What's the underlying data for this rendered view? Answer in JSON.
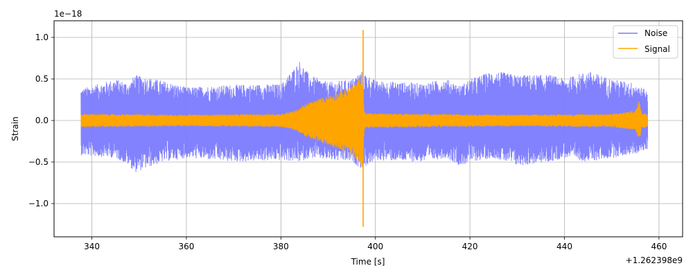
{
  "chart_data": {
    "type": "line",
    "xlabel": "Time [s]",
    "ylabel": "Strain",
    "x_offset_label": "+1.262398e9",
    "y_scale_label": "1e−18",
    "xlim": [
      332,
      465
    ],
    "ylim": [
      -1.4,
      1.2
    ],
    "grid": true,
    "legend_position": "top-right",
    "x_ticks": [
      340,
      360,
      380,
      400,
      420,
      440,
      460
    ],
    "x_tick_labels": [
      "340",
      "360",
      "380",
      "400",
      "420",
      "440",
      "460"
    ],
    "y_ticks": [
      1.0,
      0.5,
      0.0,
      -0.5,
      -1.0
    ],
    "y_tick_labels": [
      "1.0",
      "0.5",
      "0.0",
      "−0.5",
      "−1.0"
    ],
    "series": [
      {
        "name": "Noise",
        "color": "#7b7bff",
        "x_range": [
          337.7,
          457.6
        ],
        "envelope": {
          "x": [
            337.7,
            345,
            348,
            349,
            355,
            360,
            370,
            380,
            384,
            386,
            390,
            395,
            397,
            400,
            410,
            415,
            418,
            420,
            425,
            430,
            437,
            440,
            445,
            450,
            455,
            457.6
          ],
          "upper": [
            0.38,
            0.5,
            0.45,
            0.55,
            0.48,
            0.4,
            0.43,
            0.44,
            0.72,
            0.55,
            0.46,
            0.5,
            0.6,
            0.48,
            0.45,
            0.5,
            0.42,
            0.5,
            0.6,
            0.55,
            0.55,
            0.5,
            0.6,
            0.5,
            0.45,
            0.35
          ],
          "lower": [
            -0.42,
            -0.45,
            -0.55,
            -0.63,
            -0.5,
            -0.45,
            -0.5,
            -0.48,
            -0.5,
            -0.45,
            -0.48,
            -0.5,
            -0.58,
            -0.48,
            -0.5,
            -0.45,
            -0.55,
            -0.5,
            -0.45,
            -0.55,
            -0.5,
            -0.45,
            -0.5,
            -0.45,
            -0.4,
            -0.35
          ]
        }
      },
      {
        "name": "Signal",
        "color": "#ffa500",
        "x_range": [
          337.7,
          457.6
        ],
        "envelope": {
          "x": [
            337.7,
            360,
            380,
            383,
            386,
            390,
            394,
            396.5,
            397.2,
            397.6,
            398,
            410,
            430,
            450,
            455,
            455.8,
            456.3,
            457.6
          ],
          "upper": [
            0.08,
            0.07,
            0.08,
            0.12,
            0.22,
            0.3,
            0.38,
            0.5,
            0.57,
            0.12,
            0.09,
            0.08,
            0.07,
            0.08,
            0.12,
            0.25,
            0.1,
            0.08
          ],
          "lower": [
            -0.08,
            -0.07,
            -0.08,
            -0.12,
            -0.22,
            -0.3,
            -0.38,
            -0.5,
            -0.57,
            -0.12,
            -0.09,
            -0.08,
            -0.07,
            -0.08,
            -0.12,
            -0.25,
            -0.1,
            -0.08
          ]
        },
        "spike": {
          "x": 397.4,
          "max": 1.09,
          "min": -1.28
        }
      }
    ]
  }
}
